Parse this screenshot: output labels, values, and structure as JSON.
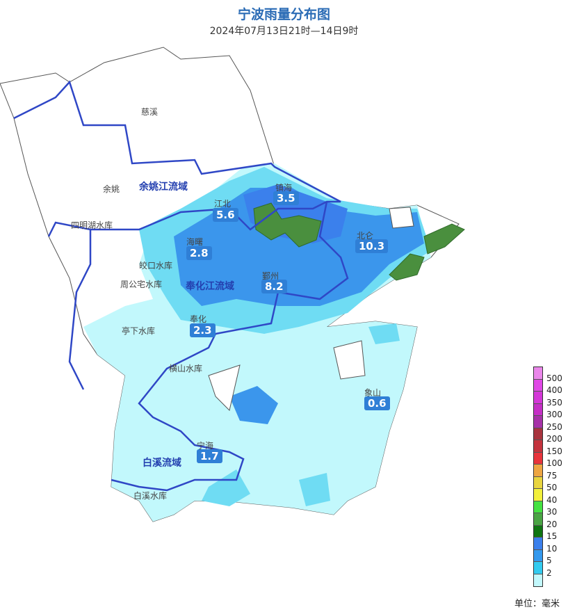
{
  "title": "宁波雨量分布图",
  "subtitle": "2024年07月13日21时—14日9时",
  "regions": [
    {
      "name": "慈溪",
      "value": null
    },
    {
      "name": "余姚",
      "value": null
    },
    {
      "name": "江北",
      "value": "5.6"
    },
    {
      "name": "镇海",
      "value": "3.5"
    },
    {
      "name": "海曙",
      "value": "2.8"
    },
    {
      "name": "北仑",
      "value": "10.3"
    },
    {
      "name": "鄞州",
      "value": "8.2"
    },
    {
      "name": "奉化",
      "value": "2.3"
    },
    {
      "name": "象山",
      "value": "0.6"
    },
    {
      "name": "宁海",
      "value": "1.7"
    }
  ],
  "basins": [
    "余姚江流域",
    "奉化江流域",
    "白溪流域"
  ],
  "reservoirs": [
    "四明湖水库",
    "皎口水库",
    "周公宅水库",
    "亭下水库",
    "横山水库",
    "白溪水库"
  ],
  "legend": {
    "labels": [
      "500",
      "400",
      "350",
      "300",
      "250",
      "200",
      "150",
      "100",
      "75",
      "50",
      "40",
      "30",
      "20",
      "15",
      "10",
      "5",
      "2"
    ],
    "colors": [
      "#ea86ea",
      "#e048e6",
      "#d437d8",
      "#c52fc6",
      "#a632a8",
      "#a8343e",
      "#c4333d",
      "#e8343c",
      "#eea643",
      "#e9d53f",
      "#f2f03c",
      "#45e241",
      "#4aa444",
      "#0f7512",
      "#3b80ec",
      "#3499ee",
      "#32cbf0",
      "#c2f8fc"
    ],
    "unit": "单位：毫米"
  }
}
